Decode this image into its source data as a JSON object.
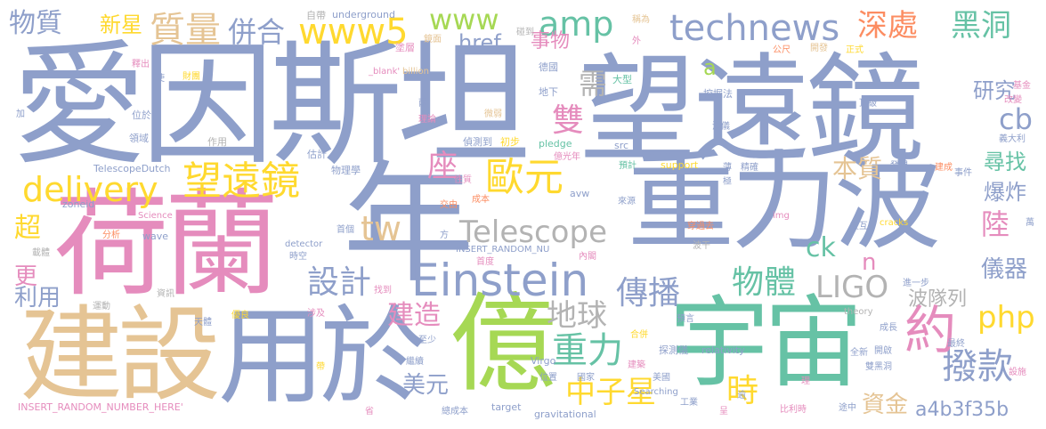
{
  "palette": {
    "blue": "#8e9fca",
    "pink": "#e58cbd",
    "green": "#66c2a5",
    "tan": "#e5c494",
    "yellow": "#ffd92f",
    "lime": "#a6d854",
    "grey": "#b3b3b3",
    "orange": "#fc8d62"
  },
  "words": [
    {
      "text": "愛因斯坦",
      "color": "blue"
    },
    {
      "text": "望遠鏡",
      "color": "blue"
    },
    {
      "text": "荷蘭",
      "color": "pink"
    },
    {
      "text": "年",
      "color": "blue"
    },
    {
      "text": "重力波",
      "color": "blue"
    },
    {
      "text": "建設",
      "color": "tan"
    },
    {
      "text": "用於",
      "color": "blue"
    },
    {
      "text": "億",
      "color": "green"
    },
    {
      "text": "宇宙",
      "color": "green"
    },
    {
      "text": "Einstein",
      "color": "blue"
    },
    {
      "text": "Telescope",
      "color": "grey"
    },
    {
      "text": "歐元",
      "color": "yellow"
    },
    {
      "text": "望遠鏡",
      "color": "yellow"
    },
    {
      "text": "www5",
      "color": "yellow"
    },
    {
      "text": "www",
      "color": "lime"
    },
    {
      "text": "amp",
      "color": "green"
    },
    {
      "text": "technews",
      "color": "blue"
    },
    {
      "text": "物質",
      "color": "blue"
    },
    {
      "text": "質量",
      "color": "tan"
    },
    {
      "text": "併合",
      "color": "blue"
    },
    {
      "text": "深處",
      "color": "orange"
    },
    {
      "text": "黑洞",
      "color": "green"
    },
    {
      "text": "研究",
      "color": "blue"
    },
    {
      "text": "delivery",
      "color": "yellow"
    },
    {
      "text": "設計",
      "color": "blue"
    },
    {
      "text": "傳播",
      "color": "blue"
    },
    {
      "text": "物體",
      "color": "green"
    },
    {
      "text": "LIGO",
      "color": "grey"
    },
    {
      "text": "地球",
      "color": "grey"
    },
    {
      "text": "重力",
      "color": "green"
    },
    {
      "text": "中子星",
      "color": "yellow"
    },
    {
      "text": "撥款",
      "color": "blue"
    },
    {
      "text": "php",
      "color": "yellow"
    },
    {
      "text": "cb",
      "color": "blue"
    },
    {
      "text": "tw",
      "color": "tan"
    },
    {
      "text": "新星",
      "color": "yellow"
    },
    {
      "text": "雙",
      "color": "pink"
    },
    {
      "text": "需",
      "color": "grey"
    },
    {
      "text": "座",
      "color": "pink"
    },
    {
      "text": "本質",
      "color": "tan"
    },
    {
      "text": "尋找",
      "color": "green"
    },
    {
      "text": "爆炸",
      "color": "blue"
    },
    {
      "text": "陸",
      "color": "pink"
    },
    {
      "text": "儀器",
      "color": "blue"
    },
    {
      "text": "波隊列",
      "color": "grey"
    },
    {
      "text": "約",
      "color": "pink"
    },
    {
      "text": "時",
      "color": "yellow"
    },
    {
      "text": "a4b3f35b",
      "color": "blue"
    },
    {
      "text": "資金",
      "color": "tan"
    },
    {
      "text": "美元",
      "color": "blue"
    },
    {
      "text": "建造",
      "color": "pink"
    },
    {
      "text": "ck",
      "color": "green"
    },
    {
      "text": "n",
      "color": "pink"
    },
    {
      "text": "事物",
      "color": "pink"
    },
    {
      "text": "href",
      "color": "blue"
    },
    {
      "text": "a",
      "color": "lime"
    },
    {
      "text": "超",
      "color": "yellow"
    },
    {
      "text": "更",
      "color": "pink"
    },
    {
      "text": "利用",
      "color": "blue"
    },
    {
      "text": "自帶",
      "color": "grey"
    },
    {
      "text": "underground",
      "color": "blue"
    },
    {
      "text": "碰到",
      "color": "grey"
    },
    {
      "text": "稱為",
      "color": "tan"
    },
    {
      "text": "塗層",
      "color": "pink"
    },
    {
      "text": "鏡面",
      "color": "tan"
    },
    {
      "text": "德國",
      "color": "blue"
    },
    {
      "text": "大型",
      "color": "green"
    },
    {
      "text": "正式",
      "color": "yellow"
    },
    {
      "text": "開發",
      "color": "tan"
    },
    {
      "text": "公尺",
      "color": "orange"
    },
    {
      "text": "_blank'",
      "color": "pink"
    },
    {
      "text": "billion",
      "color": "tan"
    },
    {
      "text": "地下",
      "color": "blue"
    },
    {
      "text": "挖掘法",
      "color": "blue"
    },
    {
      "text": "頂級",
      "color": "blue"
    },
    {
      "text": "基金",
      "color": "pink"
    },
    {
      "text": "改變",
      "color": "pink"
    },
    {
      "text": "義大利",
      "color": "blue"
    },
    {
      "text": "釋出",
      "color": "pink"
    },
    {
      "text": "使",
      "color": "blue"
    },
    {
      "text": "加",
      "color": "blue"
    },
    {
      "text": "財團",
      "color": "yellow"
    },
    {
      "text": "位於",
      "color": "blue"
    },
    {
      "text": "領域",
      "color": "blue"
    },
    {
      "text": "作用",
      "color": "grey"
    },
    {
      "text": "理論",
      "color": "pink"
    },
    {
      "text": "微弱",
      "color": "tan"
    },
    {
      "text": "兩",
      "color": "blue"
    },
    {
      "text": "偵測到",
      "color": "blue"
    },
    {
      "text": "初步",
      "color": "yellow"
    },
    {
      "text": "pledge",
      "color": "green"
    },
    {
      "text": "src",
      "color": "blue"
    },
    {
      "text": "涉儀",
      "color": "blue"
    },
    {
      "text": "估計",
      "color": "blue"
    },
    {
      "text": "物理學",
      "color": "blue"
    },
    {
      "text": "TelescopeDutch",
      "color": "blue"
    },
    {
      "text": "support",
      "color": "yellow"
    },
    {
      "text": "精確",
      "color": "blue"
    },
    {
      "text": "發現",
      "color": "blue"
    },
    {
      "text": "建成",
      "color": "orange"
    },
    {
      "text": "事件",
      "color": "blue"
    },
    {
      "text": "zoneid",
      "color": "blue"
    },
    {
      "text": "性質",
      "color": "pink"
    },
    {
      "text": "成本",
      "color": "orange"
    },
    {
      "text": "avw",
      "color": "blue"
    },
    {
      "text": "來源",
      "color": "blue"
    },
    {
      "text": "預計",
      "color": "green"
    },
    {
      "text": "億光年",
      "color": "pink"
    },
    {
      "text": "Science",
      "color": "pink"
    },
    {
      "text": "交由",
      "color": "orange"
    },
    {
      "text": "img",
      "color": "pink"
    },
    {
      "text": "交互",
      "color": "blue"
    },
    {
      "text": "穿過去",
      "color": "orange"
    },
    {
      "text": "cracks",
      "color": "yellow"
    },
    {
      "text": "萬",
      "color": "blue"
    },
    {
      "text": "分析",
      "color": "orange"
    },
    {
      "text": "wave",
      "color": "blue"
    },
    {
      "text": "detector",
      "color": "blue"
    },
    {
      "text": "首個",
      "color": "blue"
    },
    {
      "text": "波干",
      "color": "grey"
    },
    {
      "text": "INSERT_RANDOM_NU",
      "color": "blue"
    },
    {
      "text": "首度",
      "color": "pink"
    },
    {
      "text": "內閣",
      "color": "pink"
    },
    {
      "text": "載體",
      "color": "grey"
    },
    {
      "text": "時空",
      "color": "blue"
    },
    {
      "text": "資訊",
      "color": "grey"
    },
    {
      "text": "找到",
      "color": "pink"
    },
    {
      "text": "進一步",
      "color": "blue"
    },
    {
      "text": "運動",
      "color": "grey"
    },
    {
      "text": "天體",
      "color": "blue"
    },
    {
      "text": "優良",
      "color": "yellow"
    },
    {
      "text": "涉及",
      "color": "pink"
    },
    {
      "text": "theory",
      "color": "grey"
    },
    {
      "text": "成長",
      "color": "blue"
    },
    {
      "text": "預言",
      "color": "blue"
    },
    {
      "text": "至少",
      "color": "blue"
    },
    {
      "text": "合併",
      "color": "yellow"
    },
    {
      "text": "探測儀",
      "color": "blue"
    },
    {
      "text": "relativity",
      "color": "blue"
    },
    {
      "text": "最終",
      "color": "blue"
    },
    {
      "text": "全新",
      "color": "blue"
    },
    {
      "text": "開啟",
      "color": "blue"
    },
    {
      "text": "Virgo",
      "color": "blue"
    },
    {
      "text": "繼續",
      "color": "blue"
    },
    {
      "text": "建築",
      "color": "pink"
    },
    {
      "text": "雙黑洞",
      "color": "blue"
    },
    {
      "text": "設施",
      "color": "pink"
    },
    {
      "text": "INSERT_RANDOM_NUMBER_HERE'",
      "color": "pink"
    },
    {
      "text": "帶",
      "color": "yellow"
    },
    {
      "text": "位置",
      "color": "blue"
    },
    {
      "text": "國家",
      "color": "blue"
    },
    {
      "text": "美國",
      "color": "blue"
    },
    {
      "text": "理",
      "color": "pink"
    },
    {
      "text": "途中",
      "color": "blue"
    },
    {
      "text": "target",
      "color": "blue"
    },
    {
      "text": "Searching",
      "color": "blue"
    },
    {
      "text": "工業",
      "color": "blue"
    },
    {
      "text": "總成本",
      "color": "blue"
    },
    {
      "text": "gravitational",
      "color": "blue"
    },
    {
      "text": "比利時",
      "color": "pink"
    },
    {
      "text": "省",
      "color": "pink"
    },
    {
      "text": "外",
      "color": "pink"
    },
    {
      "text": "方",
      "color": "blue"
    },
    {
      "text": "薄",
      "color": "blue"
    },
    {
      "text": "極",
      "color": "blue"
    },
    {
      "text": "逾",
      "color": "blue"
    },
    {
      "text": "呈",
      "color": "pink"
    }
  ]
}
